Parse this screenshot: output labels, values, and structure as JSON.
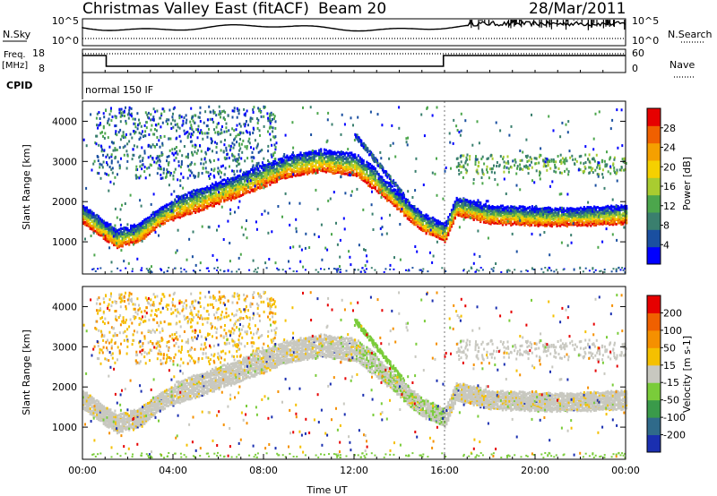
{
  "header": {
    "title": "Christmas Valley East (fitACF)",
    "beam": "Beam 20",
    "date": "28/Mar/2011"
  },
  "panels_top": {
    "nsky_label": "N.Sky",
    "nsearch_label": "N.Search",
    "freq_label_1": "Freq.",
    "freq_label_2": "[MHz]",
    "nave_label": "Nave",
    "cpid_label": "CPID",
    "cpid_text": "normal 150 IF",
    "noise_ticks": [
      "10^5",
      "10^0"
    ],
    "freq_ticks": [
      "18",
      "8"
    ],
    "nave_ticks": [
      "60",
      "0"
    ]
  },
  "chart_data": [
    {
      "type": "heatmap",
      "name": "power",
      "ylabel": "Slant Range [km]",
      "ylim": [
        200,
        4500
      ],
      "yticks": [
        1000,
        2000,
        3000,
        4000
      ],
      "xlim_hours": [
        0,
        24
      ],
      "colorbar_label": "Power [dB]",
      "colorbar_ticks": [
        "28",
        "24",
        "20",
        "16",
        "12",
        "8",
        "4"
      ],
      "colors": [
        "#0000ff",
        "#1a4fa0",
        "#3a7f6e",
        "#4ca64c",
        "#a9cc30",
        "#f5d000",
        "#f5a000",
        "#f06000",
        "#e60000"
      ]
    },
    {
      "type": "heatmap",
      "name": "velocity",
      "ylabel": "Slant Range [km]",
      "ylim": [
        200,
        4500
      ],
      "yticks": [
        1000,
        2000,
        3000,
        4000
      ],
      "xlim_hours": [
        0,
        24
      ],
      "xlabel": "Time UT",
      "xticks": [
        "00:00",
        "04:00",
        "08:00",
        "12:00",
        "16:00",
        "20:00",
        "00:00"
      ],
      "colorbar_label": "Velocity [m s-1]",
      "colorbar_ticks": [
        "200",
        "100",
        "50",
        "15",
        "-15",
        "-50",
        "-100",
        "-200"
      ],
      "colors": [
        "#1a2fb0",
        "#2f6a8a",
        "#3a9a4a",
        "#7acc3a",
        "#c8c8c0",
        "#f5c000",
        "#f59000",
        "#f06000",
        "#e60000"
      ]
    }
  ]
}
